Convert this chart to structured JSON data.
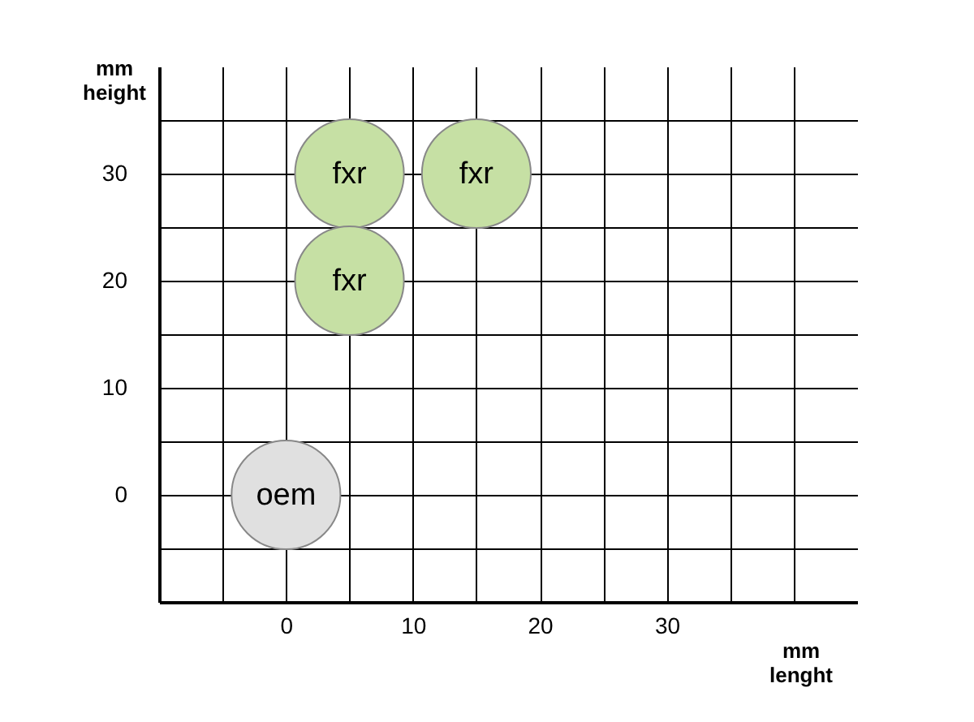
{
  "chart_data": {
    "type": "scatter",
    "xlabel": "mm\nlenght",
    "ylabel": "mm\nheight",
    "xlim": [
      -10,
      45
    ],
    "ylim": [
      -10,
      40
    ],
    "xticks": [
      {
        "value": -5,
        "label": null
      },
      0,
      {
        "value": 5,
        "label": null
      },
      10,
      {
        "value": 15,
        "label": null
      },
      20,
      {
        "value": 25,
        "label": null
      },
      30,
      {
        "value": 35,
        "label": null
      },
      {
        "value": 40,
        "label": null
      }
    ],
    "yticks": [
      {
        "value": -5,
        "label": null
      },
      0,
      {
        "value": 5,
        "label": null
      },
      10,
      {
        "value": 15,
        "label": null
      },
      20,
      {
        "value": 25,
        "label": null
      },
      30,
      {
        "value": 35,
        "label": null
      }
    ],
    "grid": true,
    "marker": "circle",
    "series": [
      {
        "name": "fxr",
        "color": "#c6e0a4",
        "x": [
          5,
          15,
          5
        ],
        "values": [
          30,
          30,
          20
        ]
      },
      {
        "name": "oem",
        "color": "#e0e0e0",
        "x": [
          0
        ],
        "values": [
          0
        ]
      }
    ]
  }
}
